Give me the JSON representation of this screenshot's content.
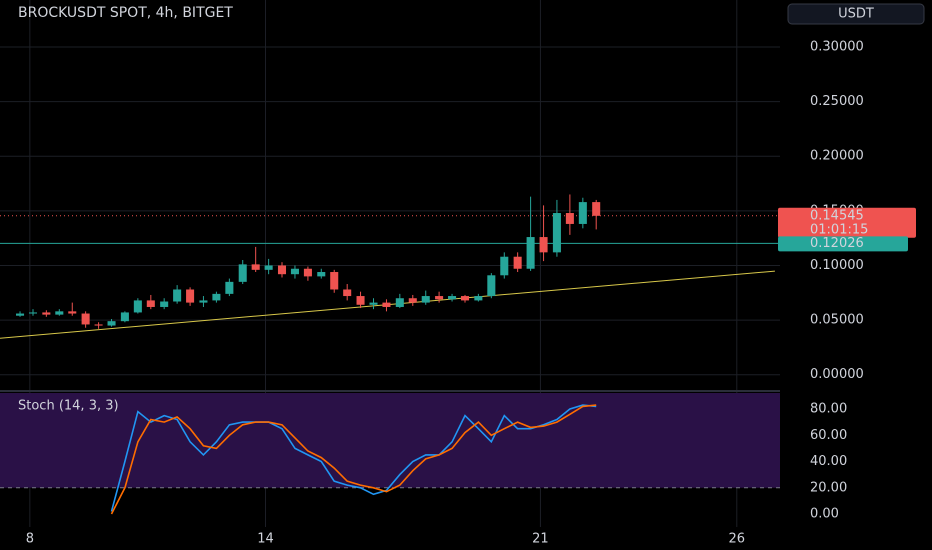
{
  "chart_data": [
    {
      "type": "candlestick",
      "title": "BROCKUSDT SPOT, 4h, BITGET",
      "currency": "USDT",
      "x": [
        7.75,
        8.08,
        8.42,
        8.75,
        9.08,
        9.42,
        9.75,
        10.08,
        10.42,
        10.75,
        11.08,
        11.42,
        11.75,
        12.08,
        12.42,
        12.75,
        13.08,
        13.42,
        13.75,
        14.08,
        14.42,
        14.75,
        15.08,
        15.42,
        15.75,
        16.08,
        16.42,
        16.75,
        17.08,
        17.42,
        17.75,
        18.08,
        18.42,
        18.75,
        19.08,
        19.42,
        19.75,
        20.08,
        20.42,
        20.75,
        21.08,
        21.42,
        21.75,
        22.08,
        22.42
      ],
      "open": [
        0.054,
        0.056,
        0.057,
        0.055,
        0.058,
        0.056,
        0.046,
        0.045,
        0.049,
        0.057,
        0.068,
        0.062,
        0.067,
        0.078,
        0.066,
        0.068,
        0.074,
        0.085,
        0.101,
        0.096,
        0.1,
        0.092,
        0.097,
        0.09,
        0.094,
        0.078,
        0.072,
        0.064,
        0.066,
        0.062,
        0.07,
        0.066,
        0.072,
        0.069,
        0.072,
        0.068,
        0.072,
        0.091,
        0.108,
        0.097,
        0.126,
        0.112,
        0.148,
        0.138,
        0.158
      ],
      "high": [
        0.058,
        0.06,
        0.059,
        0.06,
        0.066,
        0.058,
        0.048,
        0.051,
        0.058,
        0.07,
        0.073,
        0.07,
        0.082,
        0.08,
        0.072,
        0.076,
        0.088,
        0.105,
        0.117,
        0.106,
        0.103,
        0.1,
        0.099,
        0.097,
        0.096,
        0.083,
        0.076,
        0.07,
        0.069,
        0.074,
        0.073,
        0.077,
        0.076,
        0.074,
        0.073,
        0.074,
        0.093,
        0.112,
        0.112,
        0.163,
        0.155,
        0.16,
        0.165,
        0.162,
        0.16
      ],
      "low": [
        0.053,
        0.054,
        0.053,
        0.054,
        0.054,
        0.043,
        0.042,
        0.044,
        0.048,
        0.056,
        0.06,
        0.06,
        0.065,
        0.063,
        0.062,
        0.066,
        0.072,
        0.083,
        0.094,
        0.092,
        0.089,
        0.088,
        0.086,
        0.088,
        0.075,
        0.068,
        0.061,
        0.06,
        0.058,
        0.061,
        0.063,
        0.064,
        0.066,
        0.067,
        0.066,
        0.067,
        0.07,
        0.088,
        0.094,
        0.095,
        0.104,
        0.108,
        0.128,
        0.134,
        0.133
      ],
      "close": [
        0.056,
        0.057,
        0.055,
        0.058,
        0.056,
        0.046,
        0.045,
        0.049,
        0.057,
        0.068,
        0.062,
        0.067,
        0.078,
        0.066,
        0.068,
        0.074,
        0.085,
        0.101,
        0.096,
        0.1,
        0.092,
        0.097,
        0.09,
        0.094,
        0.078,
        0.072,
        0.064,
        0.066,
        0.062,
        0.07,
        0.066,
        0.072,
        0.069,
        0.072,
        0.068,
        0.072,
        0.091,
        0.108,
        0.097,
        0.126,
        0.112,
        0.148,
        0.138,
        0.158,
        0.14545
      ],
      "up_color": "#26a69a",
      "down_color": "#ef5350",
      "xlim": [
        7.24,
        27.1
      ],
      "xticks": [
        8,
        14,
        21,
        26
      ],
      "ylim": [
        -0.014,
        0.343
      ],
      "yticks": [
        {
          "value": 0,
          "label": "0.00000"
        },
        {
          "value": 0.05,
          "label": "0.05000"
        },
        {
          "value": 0.1,
          "label": "0.10000"
        },
        {
          "value": 0.15,
          "label": "0.15000"
        },
        {
          "value": 0.2,
          "label": "0.20000"
        },
        {
          "value": 0.25,
          "label": "0.25000"
        },
        {
          "value": 0.3,
          "label": "0.30000"
        }
      ],
      "last_price": 0.14545,
      "countdown": "01:01:15",
      "level": 0.12026,
      "level_color": "#26a69a",
      "trendline": {
        "x": [
          7.24,
          26.97
        ],
        "values": [
          0.0334,
          0.0948
        ],
        "color": "#d8c84a"
      },
      "grid": true
    },
    {
      "type": "line",
      "title": "Stoch (14, 3, 3)",
      "series": [
        {
          "color": "#2196f3",
          "values": [
            null,
            null,
            null,
            null,
            null,
            null,
            null,
            2,
            40,
            78,
            70,
            75,
            72,
            55,
            45,
            55,
            68,
            70,
            70,
            70,
            65,
            50,
            45,
            40,
            25,
            22,
            20,
            15,
            18,
            30,
            40,
            45,
            45,
            55,
            75,
            65,
            55,
            75,
            65,
            65,
            68,
            72,
            80,
            83,
            82
          ]
        },
        {
          "color": "#ff6d00",
          "values": [
            null,
            null,
            null,
            null,
            null,
            null,
            null,
            0,
            20,
            55,
            72,
            70,
            74,
            65,
            52,
            50,
            60,
            68,
            70,
            70,
            68,
            58,
            48,
            43,
            35,
            25,
            22,
            20,
            17,
            22,
            33,
            42,
            45,
            50,
            62,
            70,
            60,
            65,
            70,
            66,
            67,
            70,
            76,
            82,
            83
          ]
        }
      ],
      "ylim": [
        -9.9,
        92.2
      ],
      "yticks": [
        {
          "value": 0,
          "label": "0.00"
        },
        {
          "value": 20,
          "label": "20.00"
        },
        {
          "value": 40,
          "label": "40.00"
        },
        {
          "value": 60,
          "label": "60.00"
        },
        {
          "value": 80,
          "label": "80.00"
        }
      ],
      "lower_band": 20,
      "band_color": "#2a1147"
    }
  ]
}
